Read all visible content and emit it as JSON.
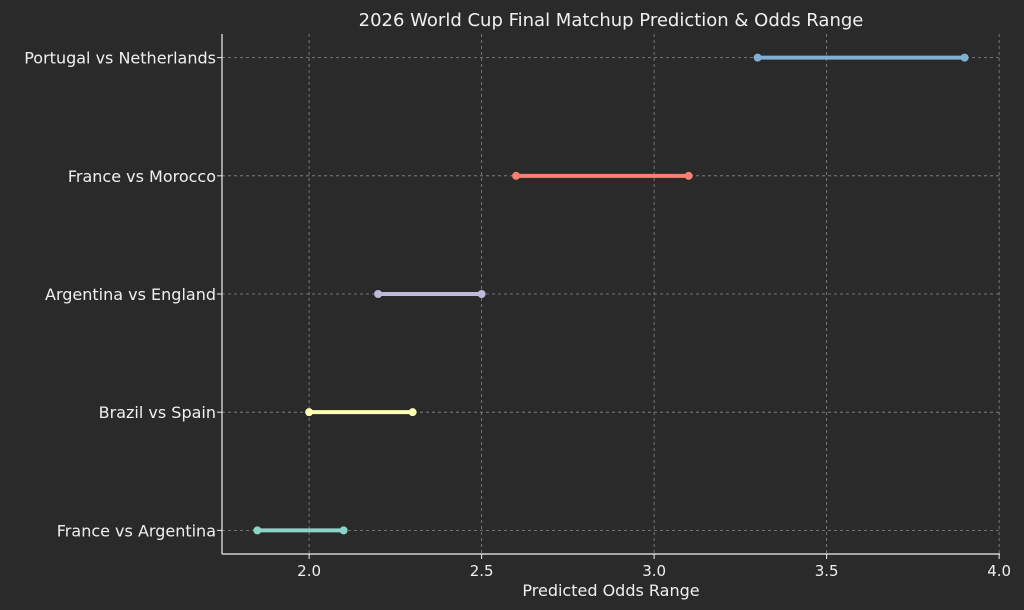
{
  "chart_data": {
    "type": "range",
    "title": "2026 World Cup Final Matchup Prediction & Odds Range",
    "xlabel": "Predicted Odds Range",
    "ylabel": "",
    "xlim": [
      1.7475,
      4.0025
    ],
    "xticks": [
      "2.0",
      "2.5",
      "3.0",
      "3.5",
      "4.0"
    ],
    "grid": true,
    "categories": [
      "France vs Argentina",
      "Brazil vs Spain",
      "Argentina vs England",
      "France vs Morocco",
      "Portugal vs Netherlands"
    ],
    "ranges": [
      {
        "low": 1.85,
        "high": 2.1,
        "color": "#8dd3c7"
      },
      {
        "low": 2.0,
        "high": 2.3,
        "color": "#ffffb3"
      },
      {
        "low": 2.2,
        "high": 2.5,
        "color": "#bebada"
      },
      {
        "low": 2.6,
        "high": 3.1,
        "color": "#fb8072"
      },
      {
        "low": 3.3,
        "high": 3.9,
        "color": "#80b1d3"
      }
    ],
    "background": "#2a2a2a"
  }
}
